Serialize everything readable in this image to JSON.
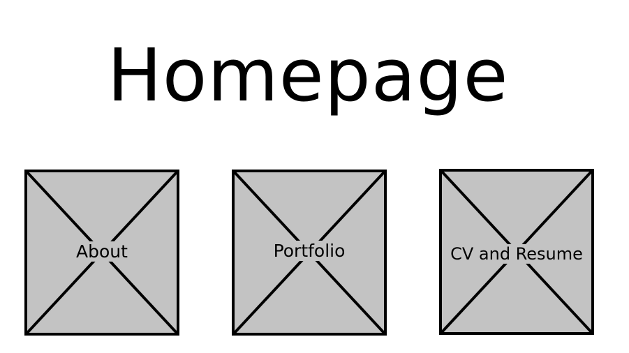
{
  "page": {
    "title": "Homepage"
  },
  "tiles": [
    {
      "label": "About",
      "icon": "image-placeholder-icon"
    },
    {
      "label": "Portfolio",
      "icon": "image-placeholder-icon"
    },
    {
      "label": "CV and Resume",
      "icon": "image-placeholder-icon"
    }
  ],
  "colors": {
    "tile_fill": "#c3c3c3",
    "stroke": "#000000",
    "background": "#ffffff"
  }
}
